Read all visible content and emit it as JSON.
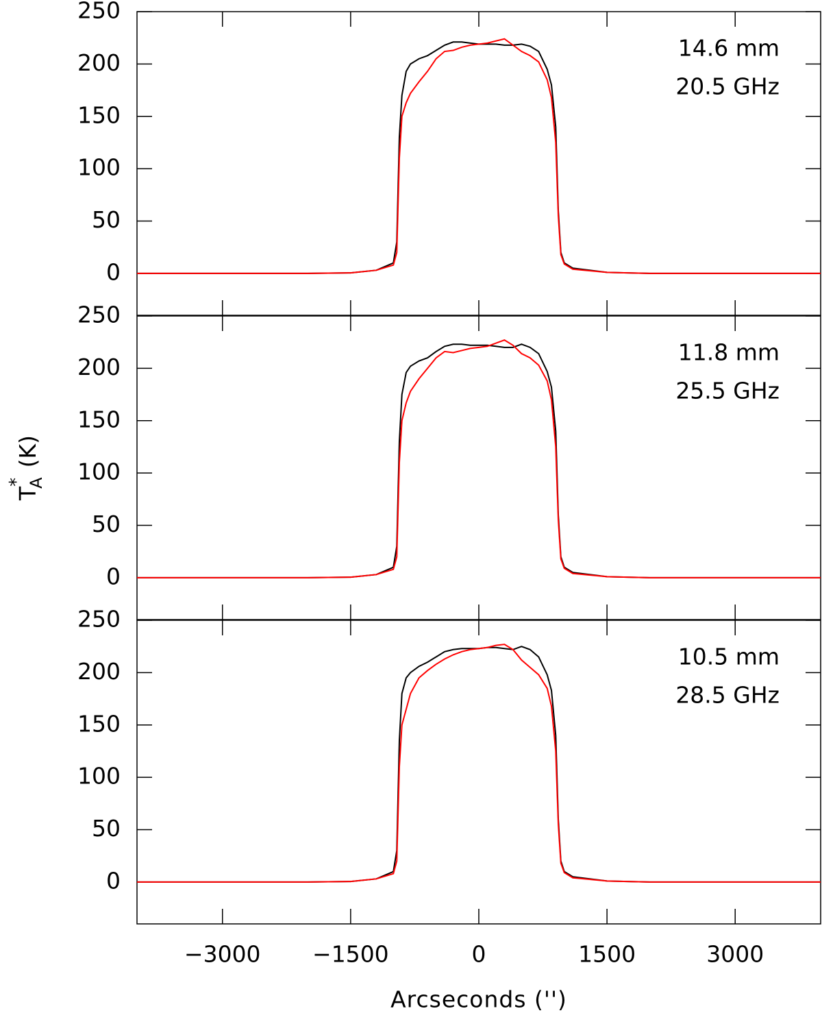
{
  "chart_data": [
    {
      "type": "line",
      "annotations": [
        "14.6 mm",
        "20.5 GHz"
      ],
      "xlim": [
        -4000,
        4000
      ],
      "ylim": [
        -40,
        250
      ],
      "xticks": [
        {
          "value": -3000,
          "label": "−3000"
        },
        {
          "value": -1500,
          "label": "−1500"
        },
        0,
        1500,
        3000
      ],
      "yticks": [
        0,
        50,
        100,
        150,
        200,
        250
      ],
      "xtick_labels": false,
      "x": [
        -4000,
        -2000,
        -1500,
        -1200,
        -1000,
        -960,
        -930,
        -900,
        -850,
        -800,
        -700,
        -600,
        -500,
        -400,
        -300,
        -200,
        -100,
        0,
        100,
        200,
        300,
        400,
        500,
        600,
        700,
        800,
        850,
        900,
        930,
        960,
        1000,
        1100,
        1500,
        2000,
        4000
      ],
      "series": [
        {
          "color": "#000000",
          "values": [
            0,
            0,
            0.5,
            3,
            10,
            30,
            130,
            170,
            193,
            200,
            205,
            208,
            213,
            218,
            221,
            221,
            220,
            219,
            219,
            219,
            218,
            218,
            219,
            217,
            212,
            195,
            180,
            140,
            60,
            20,
            10,
            5,
            1,
            0,
            0
          ]
        },
        {
          "color": "#ff0000",
          "values": [
            0,
            0,
            0.5,
            3,
            8,
            20,
            110,
            150,
            163,
            172,
            183,
            193,
            205,
            212,
            213,
            216,
            218,
            219,
            220,
            222,
            224,
            218,
            212,
            208,
            202,
            185,
            168,
            125,
            55,
            18,
            9,
            4,
            1,
            0,
            0
          ]
        }
      ]
    },
    {
      "type": "line",
      "annotations": [
        "11.8 mm",
        "25.5 GHz"
      ],
      "y_label": {
        "base": "T",
        "sup": "*",
        "sub": "A",
        "unit": "(K)"
      },
      "xlim": [
        -4000,
        4000
      ],
      "ylim": [
        -40,
        250
      ],
      "xticks": [
        {
          "value": -3000,
          "label": "−3000"
        },
        {
          "value": -1500,
          "label": "−1500"
        },
        0,
        1500,
        3000
      ],
      "yticks": [
        0,
        50,
        100,
        150,
        200,
        250
      ],
      "xtick_labels": false,
      "x": [
        -4000,
        -2000,
        -1500,
        -1200,
        -1000,
        -960,
        -930,
        -900,
        -850,
        -800,
        -700,
        -600,
        -500,
        -400,
        -300,
        -200,
        -100,
        0,
        100,
        200,
        300,
        400,
        500,
        600,
        700,
        800,
        850,
        900,
        930,
        960,
        1000,
        1100,
        1500,
        2000,
        4000
      ],
      "series": [
        {
          "color": "#000000",
          "values": [
            0,
            0,
            0.5,
            3,
            10,
            30,
            130,
            175,
            196,
            202,
            207,
            210,
            216,
            221,
            223,
            223,
            222,
            222,
            222,
            221,
            220,
            220,
            223,
            220,
            214,
            197,
            182,
            140,
            60,
            20,
            10,
            5,
            1,
            0,
            0
          ]
        },
        {
          "color": "#ff0000",
          "values": [
            0,
            0,
            0.5,
            3,
            8,
            20,
            110,
            150,
            167,
            178,
            190,
            200,
            210,
            216,
            215,
            217,
            219,
            220,
            221,
            224,
            227,
            222,
            214,
            210,
            203,
            188,
            170,
            125,
            55,
            18,
            9,
            4,
            1,
            0,
            0
          ]
        }
      ]
    },
    {
      "type": "line",
      "annotations": [
        "10.5 mm",
        "28.5 GHz"
      ],
      "x_label": "Arcseconds ('')",
      "xlim": [
        -4000,
        4000
      ],
      "ylim": [
        -40,
        250
      ],
      "xticks": [
        {
          "value": -3000,
          "label": "−3000"
        },
        {
          "value": -1500,
          "label": "−1500"
        },
        0,
        1500,
        3000
      ],
      "yticks": [
        0,
        50,
        100,
        150,
        200,
        250
      ],
      "xtick_labels": true,
      "x": [
        -4000,
        -2000,
        -1500,
        -1200,
        -1000,
        -960,
        -930,
        -900,
        -850,
        -800,
        -700,
        -600,
        -500,
        -400,
        -300,
        -200,
        -100,
        0,
        100,
        200,
        300,
        400,
        500,
        600,
        700,
        800,
        850,
        900,
        930,
        960,
        1000,
        1100,
        1500,
        2000,
        4000
      ],
      "series": [
        {
          "color": "#000000",
          "values": [
            0,
            0,
            0.5,
            3,
            10,
            30,
            135,
            180,
            195,
            200,
            206,
            210,
            215,
            220,
            222,
            223,
            223,
            223,
            224,
            224,
            223,
            222,
            225,
            222,
            215,
            198,
            183,
            140,
            60,
            20,
            10,
            5,
            1,
            0,
            0
          ]
        },
        {
          "color": "#ff0000",
          "values": [
            0,
            0,
            0.5,
            3,
            8,
            20,
            110,
            150,
            165,
            180,
            195,
            202,
            208,
            213,
            217,
            220,
            222,
            223,
            224,
            226,
            227,
            222,
            212,
            205,
            198,
            185,
            168,
            125,
            55,
            18,
            9,
            4,
            1,
            0,
            0
          ]
        }
      ]
    }
  ]
}
